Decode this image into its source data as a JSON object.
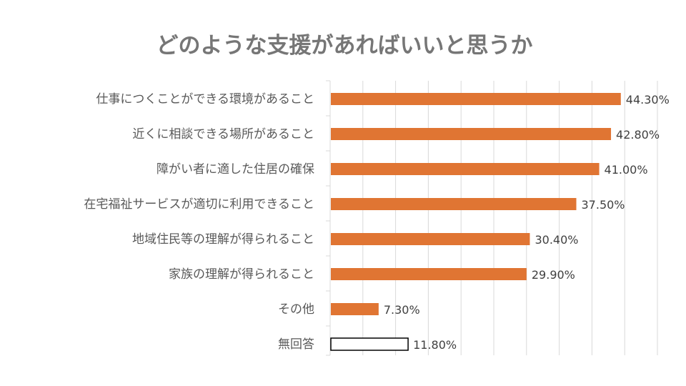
{
  "chart_data": {
    "type": "bar",
    "orientation": "horizontal",
    "title": "どのような支援があればいいと思うか",
    "categories": [
      "仕事につくことができる環境があること",
      "近くに相談できる場所があること",
      "障がい者に適した住居の確保",
      "在宅福祉サービスが適切に利用できること",
      "地域住民等の理解が得られること",
      "家族の理解が得られること",
      "その他",
      "無回答"
    ],
    "values": [
      44.3,
      42.8,
      41.0,
      37.5,
      30.4,
      29.9,
      7.3,
      11.8
    ],
    "data_labels": [
      "44.30%",
      "42.80%",
      "41.00%",
      "37.50%",
      "30.40%",
      "29.90%",
      "7.30%",
      "11.80%"
    ],
    "unit": "%",
    "xlim": [
      0,
      50
    ],
    "grid_step": 5,
    "grid": true,
    "xlabel": "",
    "ylabel": "",
    "colors": {
      "bar": "#E07533",
      "no_answer_fill": "#FFFFFF",
      "no_answer_stroke": "#000000",
      "grid": "#D9D9D9"
    }
  }
}
